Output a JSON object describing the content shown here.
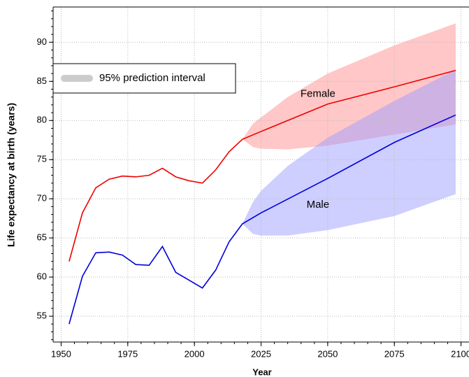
{
  "chart_data": {
    "type": "line",
    "x_label": "Year",
    "y_label": "Life expectancy at birth (years)",
    "xlim": [
      1947,
      2103
    ],
    "ylim": [
      51.7,
      94.5
    ],
    "xticks": [
      1950,
      1975,
      2000,
      2025,
      2050,
      2075,
      2100
    ],
    "yticks": [
      55,
      60,
      65,
      70,
      75,
      80,
      85,
      90
    ],
    "xminor": 5,
    "yminor": 1,
    "grid": true,
    "legend": {
      "label": "95% prediction interval",
      "color": "#cccccc",
      "position": "upper left"
    },
    "series": [
      {
        "name": "Female",
        "color": "#ee0000",
        "x": [
          1953,
          1958,
          1963,
          1968,
          1973,
          1978,
          1983,
          1988,
          1993,
          1998,
          2003,
          2008,
          2013,
          2018,
          2025,
          2050,
          2075,
          2098
        ],
        "values": [
          62.0,
          68.2,
          71.4,
          72.5,
          72.9,
          72.8,
          73.0,
          73.9,
          72.8,
          72.3,
          72.0,
          73.7,
          76.0,
          77.6,
          78.6,
          82.1,
          84.3,
          86.4
        ],
        "band_color": "#ff8f8f",
        "band_x": [
          2018,
          2022,
          2025,
          2035,
          2050,
          2075,
          2098
        ],
        "band_lower": [
          77.6,
          76.6,
          76.4,
          76.3,
          76.8,
          78.2,
          79.5
        ],
        "band_upper": [
          77.6,
          79.6,
          80.4,
          83.0,
          86.0,
          89.6,
          92.4
        ]
      },
      {
        "name": "Male",
        "color": "#0000dd",
        "x": [
          1953,
          1958,
          1963,
          1968,
          1973,
          1978,
          1983,
          1988,
          1993,
          1998,
          2003,
          2008,
          2013,
          2018,
          2025,
          2050,
          2075,
          2098
        ],
        "values": [
          54.0,
          60.1,
          63.1,
          63.2,
          62.8,
          61.6,
          61.5,
          63.9,
          60.6,
          59.6,
          58.6,
          60.9,
          64.5,
          66.8,
          68.2,
          72.6,
          77.2,
          80.7
        ],
        "band_color": "#9d9dff",
        "band_x": [
          2018,
          2022,
          2025,
          2035,
          2050,
          2075,
          2098
        ],
        "band_lower": [
          66.8,
          65.5,
          65.3,
          65.3,
          66.0,
          67.8,
          70.6
        ],
        "band_upper": [
          66.8,
          69.6,
          71.0,
          74.2,
          77.8,
          82.5,
          86.5
        ]
      }
    ]
  }
}
